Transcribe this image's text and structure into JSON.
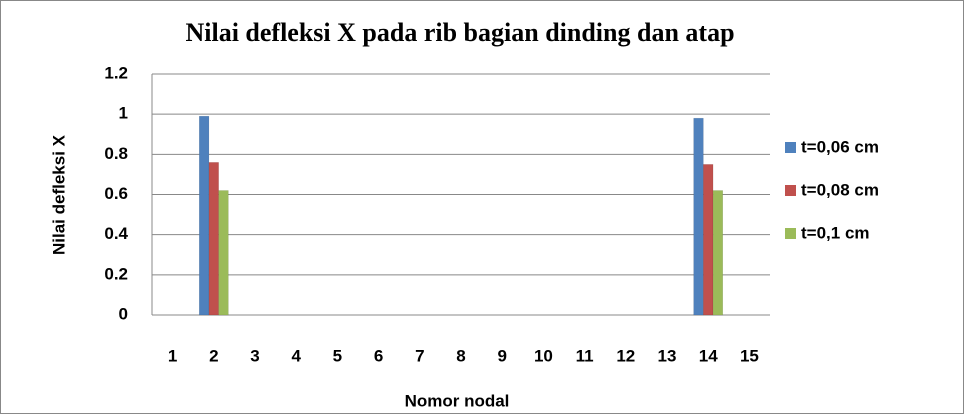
{
  "chart_data": {
    "type": "bar",
    "title": "Nilai defleksi X pada rib bagian dinding dan atap",
    "x_label": "Nomor nodal",
    "y_label": "Nilai defleksi X",
    "categories": [
      "1",
      "2",
      "3",
      "4",
      "5",
      "6",
      "7",
      "8",
      "9",
      "10",
      "11",
      "12",
      "13",
      "14",
      "15"
    ],
    "series": [
      {
        "name": "t=0,06 cm",
        "color": "#4f81bd",
        "values": [
          0,
          0.99,
          0,
          0,
          0,
          0,
          0,
          0,
          0,
          0,
          0,
          0,
          0,
          0.98,
          0
        ]
      },
      {
        "name": "t=0,08 cm",
        "color": "#c0504d",
        "values": [
          0,
          0.76,
          0,
          0,
          0,
          0,
          0,
          0,
          0,
          0,
          0,
          0,
          0,
          0.75,
          0
        ]
      },
      {
        "name": "t=0,1 cm",
        "color": "#9bbb59",
        "values": [
          0,
          0.62,
          0,
          0,
          0,
          0,
          0,
          0,
          0,
          0,
          0,
          0,
          0,
          0.62,
          0
        ]
      }
    ],
    "ylim": [
      0,
      1.2
    ],
    "yticks": [
      0,
      0.2,
      0.4,
      0.6,
      0.8,
      1,
      1.2
    ],
    "grid": true,
    "legend": "right"
  }
}
